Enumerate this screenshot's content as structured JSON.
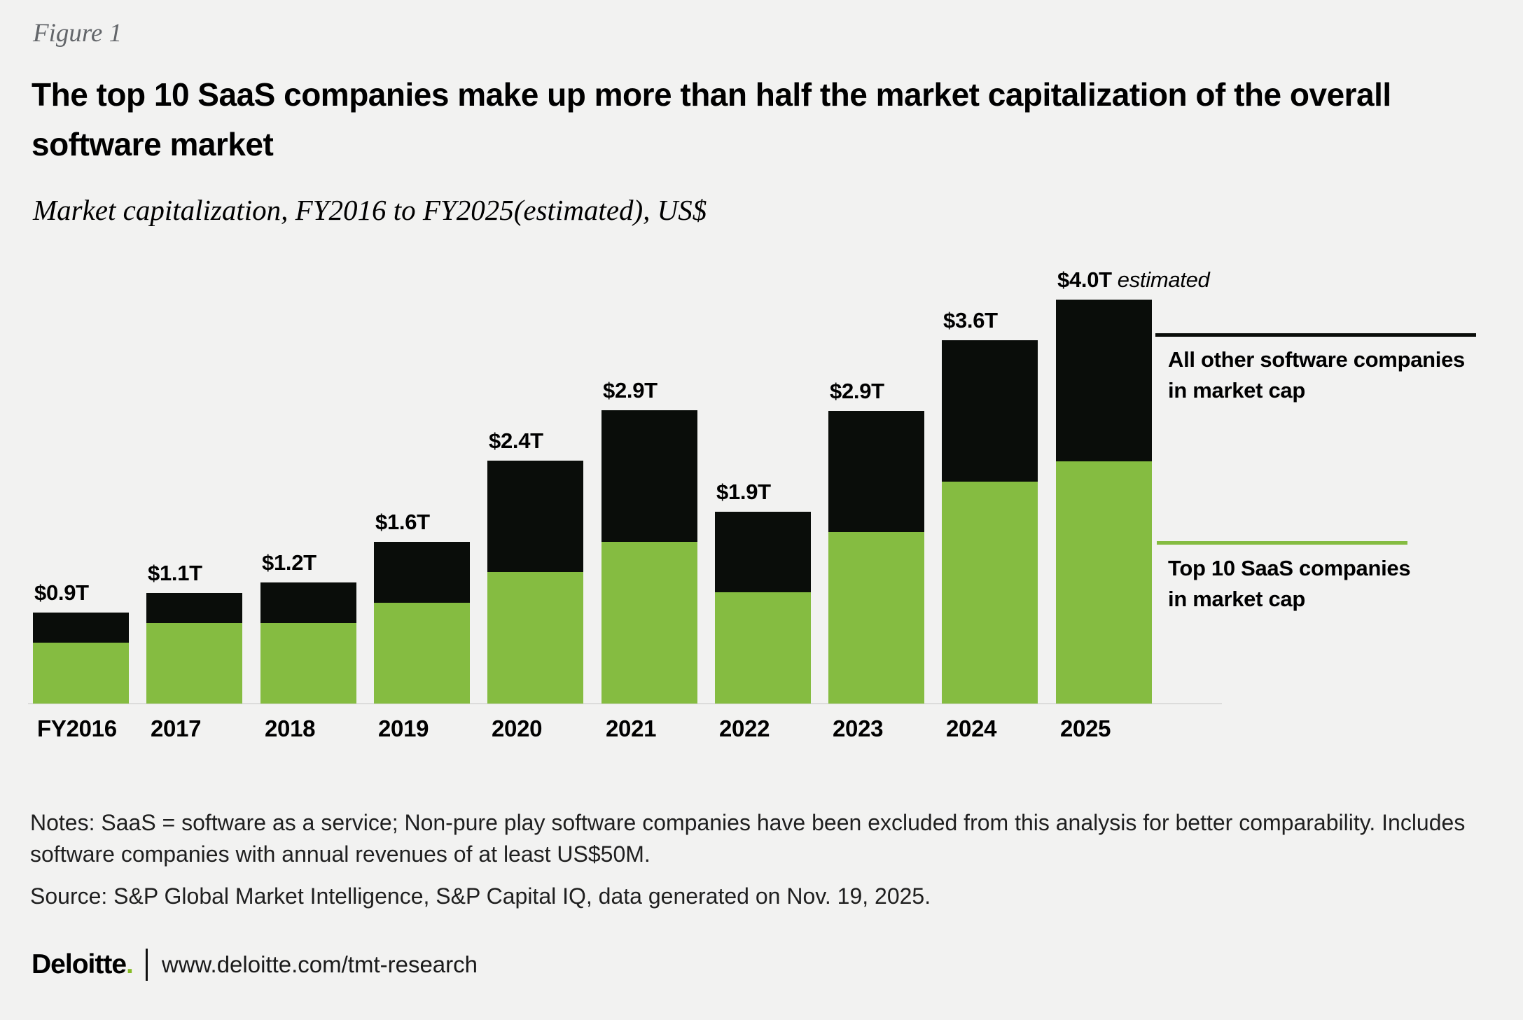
{
  "header": {
    "figure_label": "Figure 1",
    "title": "The top 10 SaaS companies make up more than half the market capitalization of the overall\nsoftware market",
    "subtitle": "Market capitalization, FY2016 to FY2025(estimated), US$"
  },
  "chart_data": {
    "type": "bar",
    "stacked": true,
    "title": "The top 10 SaaS companies make up more than half the market capitalization of the overall software market",
    "subtitle": "Market capitalization, FY2016 to FY2025(estimated), US$",
    "unit": "US$ trillions",
    "categories": [
      "FY2016",
      "2017",
      "2018",
      "2019",
      "2020",
      "2021",
      "2022",
      "2023",
      "2024",
      "2025"
    ],
    "series": [
      {
        "name": "Top 10 SaaS companies in market cap",
        "color": "#85BC41",
        "values": [
          0.6,
          0.8,
          0.8,
          1.0,
          1.3,
          1.6,
          1.1,
          1.7,
          2.2,
          2.4
        ]
      },
      {
        "name": "All other software companies in market cap",
        "color": "#0A0D0A",
        "values": [
          0.3,
          0.3,
          0.4,
          0.6,
          1.1,
          1.3,
          0.8,
          1.2,
          1.4,
          1.6
        ]
      }
    ],
    "totals": [
      0.9,
      1.1,
      1.2,
      1.6,
      2.4,
      2.9,
      1.9,
      2.9,
      3.6,
      4.0
    ],
    "total_labels": [
      "$0.9T",
      "$1.1T",
      "$1.2T",
      "$1.6T",
      "$2.4T",
      "$2.9T",
      "$1.9T",
      "$2.9T",
      "$3.6T",
      "$4.0T"
    ],
    "estimated_note": {
      "index": 9,
      "label": "estimated"
    },
    "ylim": [
      0,
      4.0
    ],
    "grid": false,
    "legend_position": "right"
  },
  "legend": {
    "other": "All other software companies\nin market cap",
    "saas": "Top 10 SaaS companies\nin market cap"
  },
  "notes": "Notes: SaaS = software as a service; Non-pure play software companies have been excluded from this analysis for better comparability. Includes\nsoftware companies with annual revenues of at least US$50M.",
  "source": "Source: S&P Global Market Intelligence, S&P Capital IQ, data generated on Nov. 19, 2025.",
  "footer": {
    "brand": "Deloitte",
    "brand_dot": ".",
    "url": "www.deloitte.com/tmt-research"
  },
  "colors": {
    "saas_green": "#85BC41",
    "other_black": "#0A0D0A",
    "background": "#F2F2F1",
    "figure_label_gray": "#63666A",
    "brand_dot_green": "#86BC25",
    "baseline_gray": "#DCDCDB"
  }
}
